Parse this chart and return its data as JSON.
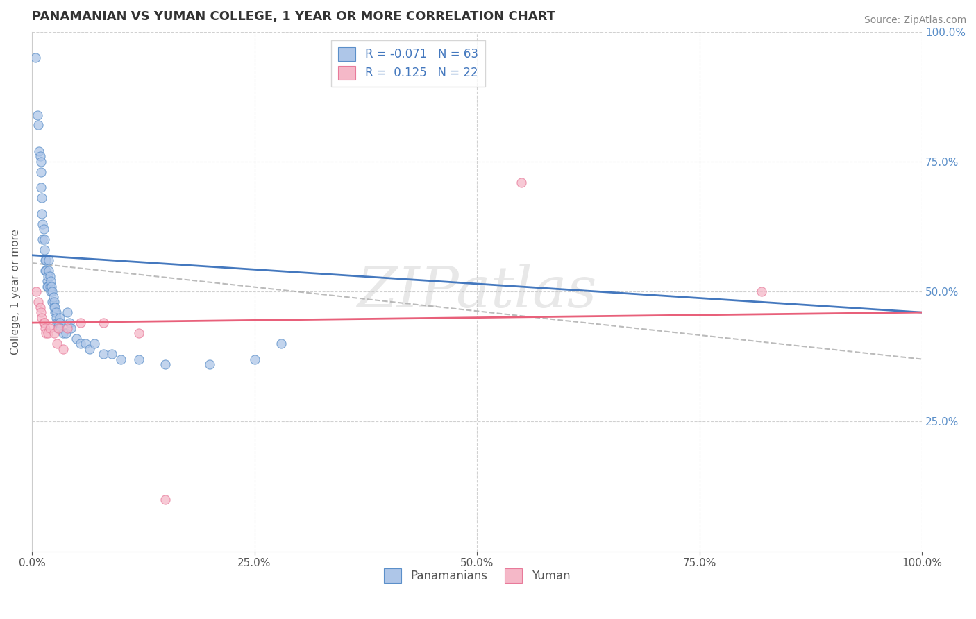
{
  "title": "PANAMANIAN VS YUMAN COLLEGE, 1 YEAR OR MORE CORRELATION CHART",
  "source": "Source: ZipAtlas.com",
  "ylabel": "College, 1 year or more",
  "r_blue": -0.071,
  "n_blue": 63,
  "r_pink": 0.125,
  "n_pink": 22,
  "blue_fill": "#aec6e8",
  "pink_fill": "#f5b8c8",
  "blue_edge": "#5b8fc9",
  "pink_edge": "#e87a9a",
  "blue_line": "#4478be",
  "pink_line": "#e8607a",
  "gray_dash": "#aaaaaa",
  "blue_scatter": [
    [
      0.004,
      0.95
    ],
    [
      0.006,
      0.84
    ],
    [
      0.007,
      0.82
    ],
    [
      0.008,
      0.77
    ],
    [
      0.009,
      0.76
    ],
    [
      0.01,
      0.75
    ],
    [
      0.01,
      0.73
    ],
    [
      0.01,
      0.7
    ],
    [
      0.011,
      0.68
    ],
    [
      0.011,
      0.65
    ],
    [
      0.012,
      0.63
    ],
    [
      0.012,
      0.6
    ],
    [
      0.013,
      0.62
    ],
    [
      0.014,
      0.6
    ],
    [
      0.014,
      0.58
    ],
    [
      0.015,
      0.56
    ],
    [
      0.015,
      0.54
    ],
    [
      0.016,
      0.56
    ],
    [
      0.016,
      0.54
    ],
    [
      0.017,
      0.52
    ],
    [
      0.017,
      0.51
    ],
    [
      0.018,
      0.53
    ],
    [
      0.018,
      0.51
    ],
    [
      0.019,
      0.56
    ],
    [
      0.019,
      0.54
    ],
    [
      0.02,
      0.53
    ],
    [
      0.02,
      0.51
    ],
    [
      0.021,
      0.5
    ],
    [
      0.021,
      0.52
    ],
    [
      0.022,
      0.51
    ],
    [
      0.023,
      0.5
    ],
    [
      0.023,
      0.48
    ],
    [
      0.024,
      0.49
    ],
    [
      0.025,
      0.48
    ],
    [
      0.025,
      0.47
    ],
    [
      0.026,
      0.46
    ],
    [
      0.026,
      0.47
    ],
    [
      0.027,
      0.46
    ],
    [
      0.027,
      0.45
    ],
    [
      0.028,
      0.44
    ],
    [
      0.029,
      0.43
    ],
    [
      0.03,
      0.44
    ],
    [
      0.031,
      0.45
    ],
    [
      0.031,
      0.44
    ],
    [
      0.032,
      0.43
    ],
    [
      0.035,
      0.42
    ],
    [
      0.038,
      0.42
    ],
    [
      0.04,
      0.46
    ],
    [
      0.042,
      0.44
    ],
    [
      0.044,
      0.43
    ],
    [
      0.05,
      0.41
    ],
    [
      0.055,
      0.4
    ],
    [
      0.06,
      0.4
    ],
    [
      0.065,
      0.39
    ],
    [
      0.07,
      0.4
    ],
    [
      0.08,
      0.38
    ],
    [
      0.09,
      0.38
    ],
    [
      0.1,
      0.37
    ],
    [
      0.12,
      0.37
    ],
    [
      0.15,
      0.36
    ],
    [
      0.2,
      0.36
    ],
    [
      0.25,
      0.37
    ],
    [
      0.28,
      0.4
    ]
  ],
  "pink_scatter": [
    [
      0.005,
      0.5
    ],
    [
      0.007,
      0.48
    ],
    [
      0.009,
      0.47
    ],
    [
      0.01,
      0.46
    ],
    [
      0.011,
      0.45
    ],
    [
      0.013,
      0.44
    ],
    [
      0.014,
      0.44
    ],
    [
      0.015,
      0.43
    ],
    [
      0.016,
      0.42
    ],
    [
      0.018,
      0.42
    ],
    [
      0.02,
      0.43
    ],
    [
      0.025,
      0.42
    ],
    [
      0.028,
      0.4
    ],
    [
      0.03,
      0.43
    ],
    [
      0.035,
      0.39
    ],
    [
      0.04,
      0.43
    ],
    [
      0.055,
      0.44
    ],
    [
      0.08,
      0.44
    ],
    [
      0.12,
      0.42
    ],
    [
      0.15,
      0.1
    ],
    [
      0.55,
      0.71
    ],
    [
      0.82,
      0.5
    ]
  ],
  "blue_trend": [
    0.0,
    1.0,
    0.57,
    0.46
  ],
  "pink_trend": [
    0.0,
    1.0,
    0.44,
    0.46
  ],
  "gray_trend": [
    0.0,
    1.0,
    0.555,
    0.37
  ],
  "background_color": "#ffffff",
  "grid_color": "#cccccc",
  "tick_color": "#5b8fc9",
  "xlim": [
    0.0,
    1.0
  ],
  "ylim": [
    0.0,
    1.0
  ],
  "xticks": [
    0.0,
    0.25,
    0.5,
    0.75,
    1.0
  ],
  "yticks": [
    0.25,
    0.5,
    0.75,
    1.0
  ],
  "xticklabels": [
    "0.0%",
    "25.0%",
    "50.0%",
    "75.0%",
    "100.0%"
  ],
  "yticklabels_right": [
    "25.0%",
    "50.0%",
    "75.0%",
    "100.0%"
  ]
}
